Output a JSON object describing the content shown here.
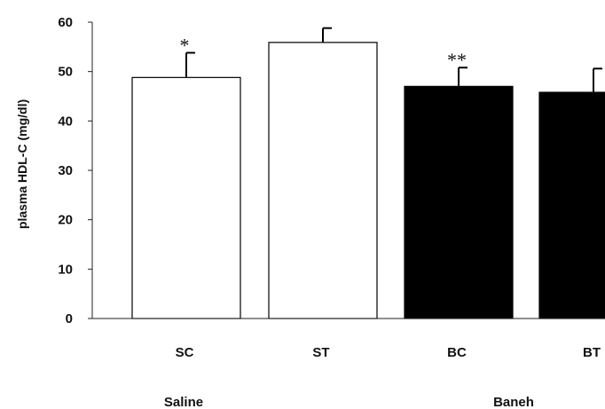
{
  "chart_data": {
    "type": "bar",
    "ylabel": "plasma HDL-C (mg/dl)",
    "ylim": [
      0,
      60
    ],
    "yticks": [
      "0",
      "10",
      "20",
      "30",
      "40",
      "50",
      "60"
    ],
    "categories": [
      "SC",
      "ST",
      "BC",
      "BT"
    ],
    "values": [
      48.8,
      55.9,
      47.0,
      45.8
    ],
    "errors": [
      5.0,
      2.9,
      3.8,
      4.8
    ],
    "fills": [
      "#ffffff",
      "#ffffff",
      "#000000",
      "#000000"
    ],
    "annotations": [
      "*",
      "",
      "**",
      ""
    ],
    "groups": [
      {
        "label": "Saline",
        "categories": [
          "SC",
          "ST"
        ]
      },
      {
        "label": "Baneh",
        "categories": [
          "BC",
          "BT"
        ]
      }
    ],
    "grid": false,
    "legend": "none"
  }
}
